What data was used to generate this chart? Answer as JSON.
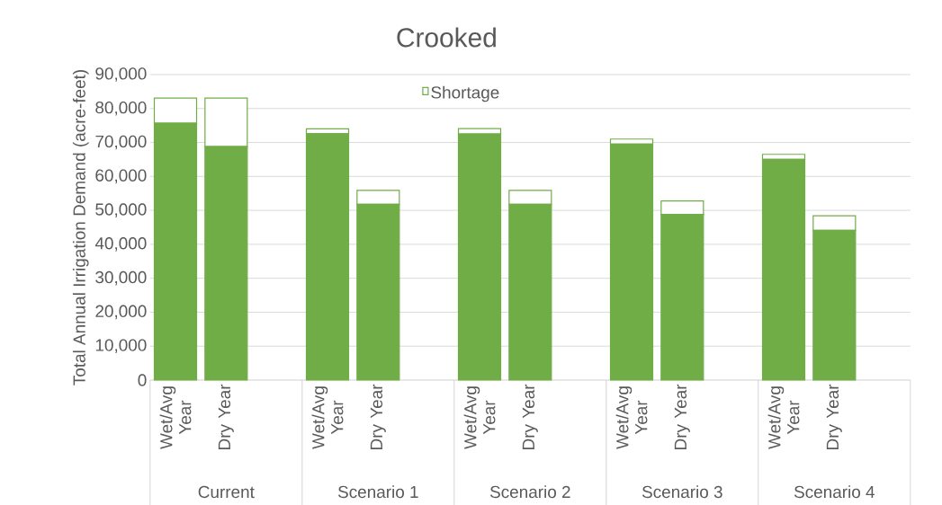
{
  "chart_data": {
    "type": "bar",
    "stacked": true,
    "title": "Crooked",
    "ylabel": "Total Annual Irrigation Demand (acre-feet)",
    "categories": [
      "Wet/Avg Year",
      "Dry Year",
      null,
      "Wet/Avg Year",
      "Dry Year",
      null,
      "Wet/Avg Year",
      "Dry Year",
      null,
      "Wet/Avg Year",
      "Dry Year",
      null,
      "Wet/Avg Year",
      "Dry Year",
      null
    ],
    "series": [
      {
        "color": "#70ad47",
        "values": [
          75700,
          68800,
          null,
          72600,
          51800,
          null,
          72500,
          51800,
          null,
          69500,
          48800,
          null,
          65000,
          44100,
          null
        ]
      },
      {
        "name": "Shortage",
        "color": "#ffffff",
        "values": [
          7400,
          14300,
          null,
          1400,
          4100,
          null,
          1600,
          4100,
          null,
          1500,
          4000,
          null,
          1500,
          4300,
          null
        ]
      }
    ],
    "annotations": [
      "Current",
      "Scenario 1",
      "Scenario 2",
      "Scenario 3",
      "Scenario 4"
    ],
    "ylim": [
      0,
      90000
    ],
    "yticks": [
      {
        "value": 0,
        "label": "0"
      },
      {
        "value": 10000,
        "label": "10,000"
      },
      {
        "value": 20000,
        "label": "20,000"
      },
      {
        "value": 30000,
        "label": "30,000"
      },
      {
        "value": 40000,
        "label": "40,000"
      },
      {
        "value": 50000,
        "label": "50,000"
      },
      {
        "value": 60000,
        "label": "60,000"
      },
      {
        "value": 70000,
        "label": "70,000"
      },
      {
        "value": 80000,
        "label": "80,000"
      },
      {
        "value": 90000,
        "label": "90,000"
      }
    ],
    "grid": "y",
    "legend": "top"
  }
}
